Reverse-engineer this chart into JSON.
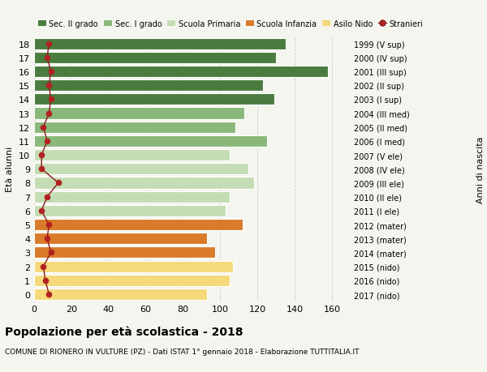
{
  "ages": [
    18,
    17,
    16,
    15,
    14,
    13,
    12,
    11,
    10,
    9,
    8,
    7,
    6,
    5,
    4,
    3,
    2,
    1,
    0
  ],
  "bar_values": [
    135,
    130,
    158,
    123,
    129,
    113,
    108,
    125,
    105,
    115,
    118,
    105,
    103,
    112,
    93,
    97,
    107,
    105,
    93
  ],
  "stranieri": [
    8,
    7,
    9,
    8,
    9,
    8,
    5,
    7,
    4,
    4,
    13,
    7,
    4,
    8,
    7,
    9,
    5,
    6,
    8
  ],
  "right_labels": [
    "1999 (V sup)",
    "2000 (IV sup)",
    "2001 (III sup)",
    "2002 (II sup)",
    "2003 (I sup)",
    "2004 (III med)",
    "2005 (II med)",
    "2006 (I med)",
    "2007 (V ele)",
    "2008 (IV ele)",
    "2009 (III ele)",
    "2010 (II ele)",
    "2011 (I ele)",
    "2012 (mater)",
    "2013 (mater)",
    "2014 (mater)",
    "2015 (nido)",
    "2016 (nido)",
    "2017 (nido)"
  ],
  "bar_colors": [
    "#4a7c3f",
    "#4a7c3f",
    "#4a7c3f",
    "#4a7c3f",
    "#4a7c3f",
    "#8ab87a",
    "#8ab87a",
    "#8ab87a",
    "#c5ddb4",
    "#c5ddb4",
    "#c5ddb4",
    "#c5ddb4",
    "#c5ddb4",
    "#d97b2a",
    "#d97b2a",
    "#d97b2a",
    "#f5d97a",
    "#f5d97a",
    "#f5d97a"
  ],
  "color_sec2": "#4a7c3f",
  "color_sec1": "#8ab87a",
  "color_prim": "#c5ddb4",
  "color_inf": "#d97b2a",
  "color_nido": "#f5d97a",
  "color_stranieri": "#b22222",
  "color_line": "#8b1a1a",
  "title": "Popolazione per età scolastica - 2018",
  "subtitle": "COMUNE DI RIONERO IN VULTURE (PZ) - Dati ISTAT 1° gennaio 2018 - Elaborazione TUTTITALIA.IT",
  "ylabel_left": "Età alunni",
  "ylabel_right": "Anni di nascita",
  "xlim": [
    0,
    170
  ],
  "xticks": [
    0,
    20,
    40,
    60,
    80,
    100,
    120,
    140,
    160
  ],
  "bg_color": "#f5f5f0",
  "grid_color": "#cccccc"
}
